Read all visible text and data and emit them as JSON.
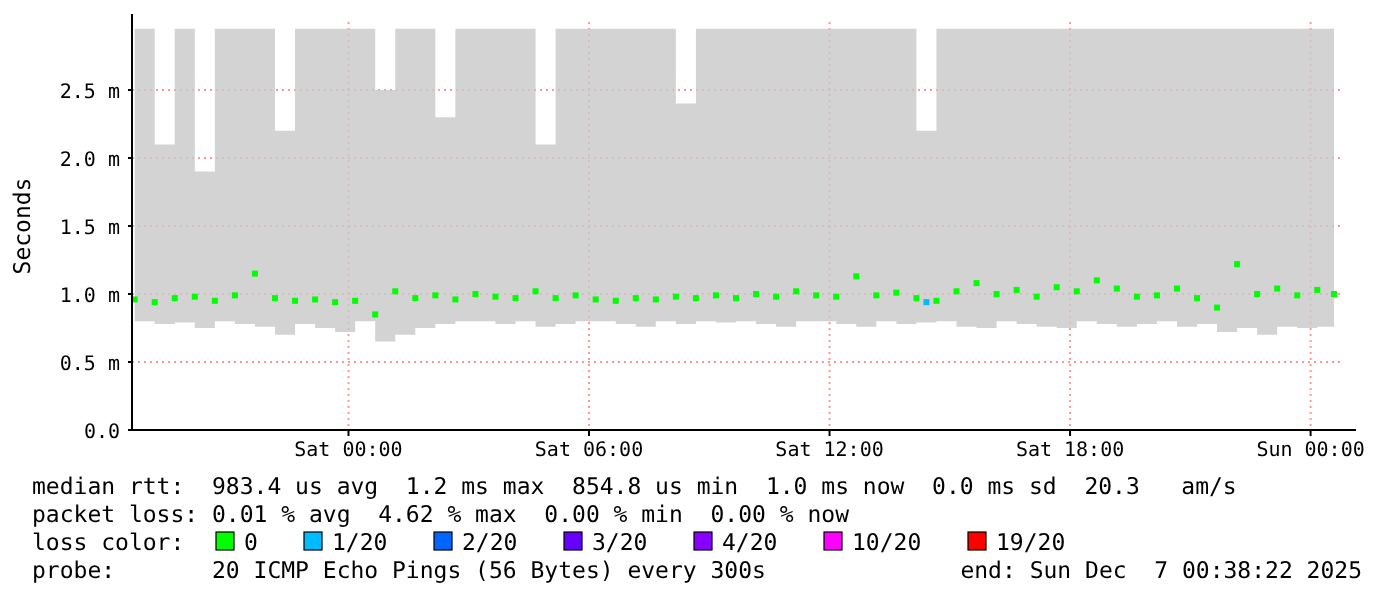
{
  "chart_data": {
    "type": "scatter",
    "ylabel": "Seconds",
    "legend_title": "loss color:",
    "legend": "bottom",
    "grid": true,
    "marker": "square",
    "xlim": [
      "2025-12-05T18:36",
      "2025-12-07T00:50"
    ],
    "xticks": [
      {
        "value": "2025-12-06T00:00",
        "label": "Sat 00:00"
      },
      {
        "value": "2025-12-06T06:00",
        "label": "Sat 06:00"
      },
      {
        "value": "2025-12-06T12:00",
        "label": "Sat 12:00"
      },
      {
        "value": "2025-12-06T18:00",
        "label": "Sat 18:00"
      },
      {
        "value": "2025-12-07T00:00",
        "label": "Sun 00:00"
      }
    ],
    "ylim": [
      0,
      3
    ],
    "yticks": [
      {
        "value": 0,
        "label": "0.0"
      },
      {
        "value": 0.5,
        "label": "0.5 m"
      },
      {
        "value": 1,
        "label": "1.0 m"
      },
      {
        "value": 1.5,
        "label": "1.5 m"
      },
      {
        "value": 2,
        "label": "2.0 m"
      },
      {
        "value": 2.5,
        "label": "2.5 m"
      }
    ],
    "series": [
      {
        "name": "0",
        "color": "#00ff00",
        "x": [
          "2025-12-05T18:40",
          "2025-12-05T19:10",
          "2025-12-05T19:40",
          "2025-12-05T20:10",
          "2025-12-05T20:40",
          "2025-12-05T21:10",
          "2025-12-05T21:40",
          "2025-12-05T22:10",
          "2025-12-05T22:40",
          "2025-12-05T23:10",
          "2025-12-05T23:40",
          "2025-12-06T00:10",
          "2025-12-06T00:40",
          "2025-12-06T01:10",
          "2025-12-06T01:40",
          "2025-12-06T02:10",
          "2025-12-06T02:40",
          "2025-12-06T03:10",
          "2025-12-06T03:40",
          "2025-12-06T04:10",
          "2025-12-06T04:40",
          "2025-12-06T05:10",
          "2025-12-06T05:40",
          "2025-12-06T06:10",
          "2025-12-06T06:40",
          "2025-12-06T07:10",
          "2025-12-06T07:40",
          "2025-12-06T08:10",
          "2025-12-06T08:40",
          "2025-12-06T09:10",
          "2025-12-06T09:40",
          "2025-12-06T10:10",
          "2025-12-06T10:40",
          "2025-12-06T11:10",
          "2025-12-06T11:40",
          "2025-12-06T12:10",
          "2025-12-06T12:40",
          "2025-12-06T13:10",
          "2025-12-06T13:40",
          "2025-12-06T14:10",
          "2025-12-06T14:40",
          "2025-12-06T15:10",
          "2025-12-06T15:40",
          "2025-12-06T16:10",
          "2025-12-06T16:40",
          "2025-12-06T17:10",
          "2025-12-06T17:40",
          "2025-12-06T18:10",
          "2025-12-06T18:40",
          "2025-12-06T19:10",
          "2025-12-06T19:40",
          "2025-12-06T20:10",
          "2025-12-06T20:40",
          "2025-12-06T21:10",
          "2025-12-06T21:40",
          "2025-12-06T22:10",
          "2025-12-06T22:40",
          "2025-12-06T23:10",
          "2025-12-06T23:40",
          "2025-12-07T00:10",
          "2025-12-07T00:35"
        ],
        "values": [
          0.96,
          0.94,
          0.97,
          0.98,
          0.95,
          0.99,
          1.15,
          0.97,
          0.95,
          0.96,
          0.94,
          0.95,
          0.85,
          1.02,
          0.97,
          0.99,
          0.96,
          1.0,
          0.98,
          0.97,
          1.02,
          0.97,
          0.99,
          0.96,
          0.95,
          0.97,
          0.96,
          0.98,
          0.97,
          0.99,
          0.97,
          1.0,
          0.98,
          1.02,
          0.99,
          0.98,
          1.13,
          0.99,
          1.01,
          0.97,
          0.95,
          1.02,
          1.08,
          1.0,
          1.03,
          0.98,
          1.05,
          1.02,
          1.1,
          1.04,
          0.98,
          0.99,
          1.04,
          0.97,
          0.9,
          1.22,
          1.0,
          1.04,
          0.99,
          1.03,
          1.0
        ],
        "lower": [
          0.8,
          0.78,
          0.79,
          0.75,
          0.8,
          0.78,
          0.76,
          0.7,
          0.78,
          0.75,
          0.72,
          0.8,
          0.65,
          0.7,
          0.75,
          0.78,
          0.8,
          0.8,
          0.78,
          0.8,
          0.76,
          0.78,
          0.8,
          0.8,
          0.78,
          0.76,
          0.8,
          0.78,
          0.8,
          0.79,
          0.8,
          0.78,
          0.76,
          0.8,
          0.8,
          0.78,
          0.76,
          0.8,
          0.78,
          0.79,
          0.8,
          0.76,
          0.75,
          0.8,
          0.78,
          0.76,
          0.75,
          0.8,
          0.78,
          0.76,
          0.78,
          0.8,
          0.76,
          0.78,
          0.72,
          0.75,
          0.7,
          0.76,
          0.75,
          0.76,
          0.7
        ],
        "upper": [
          2.95,
          2.1,
          2.95,
          1.9,
          2.95,
          2.95,
          2.95,
          2.2,
          2.95,
          2.95,
          2.95,
          2.95,
          2.5,
          2.95,
          2.95,
          2.3,
          2.95,
          2.95,
          2.95,
          2.95,
          2.1,
          2.95,
          2.95,
          2.95,
          2.95,
          2.95,
          2.95,
          2.4,
          2.95,
          2.95,
          2.95,
          2.95,
          2.95,
          2.95,
          2.95,
          2.95,
          2.95,
          2.95,
          2.95,
          2.2,
          2.95,
          2.95,
          2.95,
          2.95,
          2.95,
          2.95,
          2.95,
          2.95,
          2.95,
          2.95,
          2.95,
          2.95,
          2.95,
          2.95,
          2.95,
          2.95,
          2.95,
          2.95,
          2.95,
          2.95,
          2.95
        ]
      },
      {
        "name": "1/20",
        "color": "#00bbff",
        "x": [
          "2025-12-06T14:25"
        ],
        "values": [
          0.94
        ]
      },
      {
        "name": "2/20",
        "color": "#0066ff"
      },
      {
        "name": "3/20",
        "color": "#6600ff"
      },
      {
        "name": "4/20",
        "color": "#8800ff"
      },
      {
        "name": "10/20",
        "color": "#ff00ff"
      },
      {
        "name": "19/20",
        "color": "#ff0000"
      }
    ],
    "annotations": [
      "median rtt:  983.4 us avg  1.2 ms max  854.8 us min  1.0 ms now  0.0 ms sd  20.3   am/s",
      "packet loss: 0.01 % avg  4.62 % max  0.00 % min  0.00 % now",
      "probe:       20 ICMP Echo Pings (56 Bytes) every 300s",
      "end: Sun Dec  7 00:38:22 2025"
    ]
  }
}
